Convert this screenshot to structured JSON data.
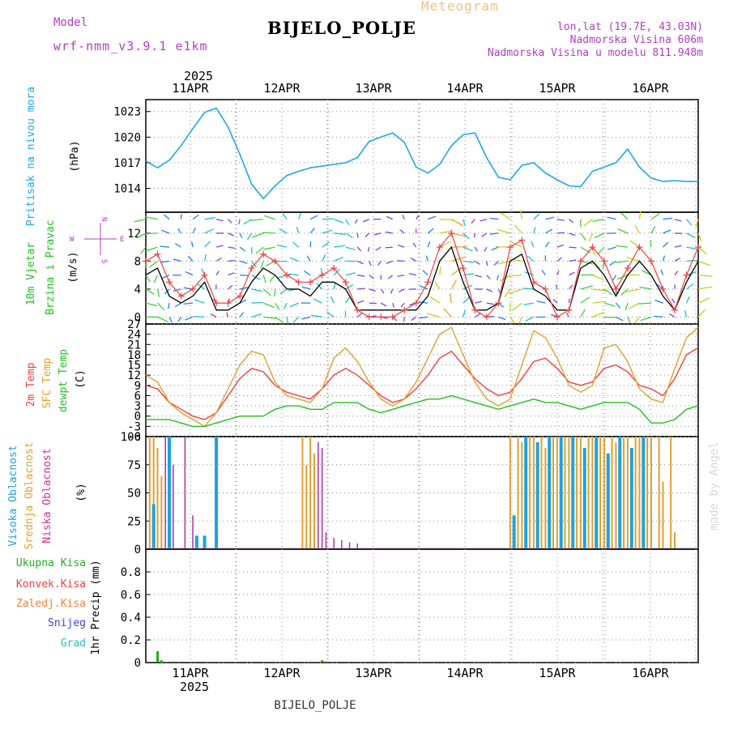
{
  "header": {
    "model_label": "Model",
    "model_value": "wrf-nmm_v3.9.1 e1km",
    "title": "BIJELO_POLJE",
    "meteogram_label": "Meteogram",
    "lonlat": "lon,lat (19.7E, 43.03N)",
    "elevation": "Nadmorska Visina 606m",
    "model_elevation": "Nadmorska Visina u modelu 811.948m"
  },
  "footer": {
    "station": "BIJELO_POLJE"
  },
  "watermark": "made by Angel",
  "colors": {
    "pressure": "#1ea7e8",
    "temp": "#f04040",
    "sfc": "#e0a030",
    "dew": "#20c020",
    "high_cloud": "#20a0e0",
    "mid_cloud": "#e0a030",
    "low_cloud": "#b030a0",
    "precip_total": "#20b020",
    "convective": "#f04040",
    "freezing": "#f08030",
    "snow": "#4040e0",
    "hail": "#20c0c0"
  },
  "chart_data": [
    {
      "type": "line",
      "name": "pressure",
      "ylabel_lines": [
        "Pritisak na nivou mora"
      ],
      "unit": "(hPa)",
      "top_year": "2025",
      "bottom_year": "2025",
      "xticks": [
        "11APR",
        "12APR",
        "13APR",
        "14APR",
        "15APR",
        "16APR"
      ],
      "xlim": [
        0,
        141
      ],
      "ylim": [
        1011.2,
        1024.4
      ],
      "yticks": [
        1014,
        1017,
        1020,
        1023
      ],
      "ytick_labels": [
        "1014",
        "1017",
        "1020",
        "1023"
      ],
      "x": [
        0,
        3,
        6,
        9,
        12,
        15,
        18,
        21,
        24,
        27,
        30,
        33,
        36,
        39,
        42,
        45,
        48,
        51,
        54,
        57,
        60,
        63,
        66,
        69,
        72,
        75,
        78,
        81,
        84,
        87,
        90,
        93,
        96,
        99,
        102,
        105,
        108,
        111,
        114,
        117,
        120,
        123,
        126,
        129,
        132,
        135,
        138,
        141
      ],
      "values": [
        1017.2,
        1016.4,
        1017.3,
        1019.0,
        1021.0,
        1022.9,
        1023.4,
        1021.2,
        1018.0,
        1014.5,
        1012.8,
        1014.3,
        1015.5,
        1016.0,
        1016.4,
        1016.6,
        1016.8,
        1017.0,
        1017.6,
        1019.5,
        1020.0,
        1020.5,
        1019.4,
        1016.5,
        1015.8,
        1016.8,
        1019.0,
        1020.3,
        1020.5,
        1017.6,
        1015.3,
        1015.0,
        1016.7,
        1017.0,
        1015.8,
        1015.0,
        1014.3,
        1014.2,
        1016.0,
        1016.5,
        1017.0,
        1018.6,
        1016.5,
        1015.2,
        1014.8,
        1014.9,
        1014.8,
        1014.8
      ]
    },
    {
      "type": "line",
      "name": "wind",
      "ylabel_lines": [
        "10m Vjetar",
        "Brzina i Pravac"
      ],
      "unit": "(m/s)",
      "compass": {
        "n": "N",
        "s": "S",
        "e": "E",
        "w": "W"
      },
      "ylim": [
        -1,
        15
      ],
      "yticks": [
        0,
        4,
        8,
        12
      ],
      "ytick_labels": [
        "0",
        "4",
        "8",
        "12"
      ],
      "x": [
        0,
        3,
        6,
        9,
        12,
        15,
        18,
        21,
        24,
        27,
        30,
        33,
        36,
        39,
        42,
        45,
        48,
        51,
        54,
        57,
        60,
        63,
        66,
        69,
        72,
        75,
        78,
        81,
        84,
        87,
        90,
        93,
        96,
        99,
        102,
        105,
        108,
        111,
        114,
        117,
        120,
        123,
        126,
        129,
        132,
        135,
        138,
        141
      ],
      "series": [
        {
          "name": "speed",
          "values": [
            6,
            7,
            3,
            2,
            3,
            5,
            1,
            1,
            2,
            5,
            7,
            6,
            4,
            4,
            3,
            5,
            5,
            4,
            1,
            1,
            1,
            1,
            1,
            1,
            3,
            8,
            10,
            5,
            1,
            1,
            2,
            8,
            9,
            4,
            3,
            1,
            1,
            7,
            8,
            6,
            3,
            6,
            8,
            6,
            3,
            1,
            5,
            8
          ]
        },
        {
          "name": "gust",
          "values": [
            8,
            9,
            5,
            3,
            4,
            6,
            2,
            2,
            3,
            7,
            9,
            8,
            6,
            5,
            5,
            6,
            7,
            5,
            1,
            0,
            0,
            0,
            1,
            2,
            5,
            10,
            12,
            7,
            1,
            0,
            2,
            10,
            11,
            5,
            4,
            0,
            1,
            8,
            10,
            8,
            4,
            7,
            10,
            8,
            4,
            1,
            6,
            10
          ]
        }
      ]
    },
    {
      "type": "line",
      "name": "temperature",
      "ylabel_lines": [
        "2m Temp",
        "SFC Temp",
        "dewpt Temp"
      ],
      "unit": "(C)",
      "ylim": [
        -6,
        27
      ],
      "yticks": [
        -6,
        -3,
        0,
        3,
        6,
        9,
        12,
        15,
        18,
        21,
        24,
        27
      ],
      "ytick_labels": [
        "-6",
        "-3",
        "0",
        "3",
        "6",
        "9",
        "12",
        "15",
        "18",
        "21",
        "24",
        "27"
      ],
      "x": [
        0,
        3,
        6,
        9,
        12,
        15,
        18,
        21,
        24,
        27,
        30,
        33,
        36,
        39,
        42,
        45,
        48,
        51,
        54,
        57,
        60,
        63,
        66,
        69,
        72,
        75,
        78,
        81,
        84,
        87,
        90,
        93,
        96,
        99,
        102,
        105,
        108,
        111,
        114,
        117,
        120,
        123,
        126,
        129,
        132,
        135,
        138,
        141
      ],
      "series": [
        {
          "name": "2m Temp",
          "values": [
            9,
            8,
            4,
            2,
            0,
            -1,
            1,
            6,
            11,
            14,
            13,
            9,
            7,
            6,
            5,
            8,
            12,
            14,
            12,
            9,
            6,
            4,
            5,
            8,
            12,
            17,
            19,
            15,
            11,
            8,
            6,
            7,
            11,
            16,
            17,
            14,
            10,
            9,
            10,
            14,
            15,
            13,
            9,
            8,
            6,
            11,
            18,
            20
          ]
        },
        {
          "name": "SFC Temp",
          "values": [
            12,
            10,
            4,
            1,
            -1,
            -3,
            1,
            8,
            15,
            19,
            18,
            10,
            6,
            5,
            4,
            8,
            17,
            20,
            16,
            10,
            5,
            3,
            5,
            10,
            17,
            24,
            26,
            18,
            10,
            5,
            3,
            5,
            15,
            25,
            23,
            17,
            9,
            7,
            9,
            20,
            21,
            16,
            8,
            5,
            4,
            14,
            23,
            26
          ]
        },
        {
          "name": "dewpt Temp",
          "values": [
            -1,
            -1,
            -1,
            -2,
            -3,
            -3,
            -2,
            -1,
            0,
            0,
            0,
            2,
            3,
            3,
            2,
            2,
            4,
            4,
            4,
            2,
            1,
            2,
            3,
            4,
            5,
            5,
            6,
            5,
            4,
            3,
            2,
            3,
            4,
            5,
            4,
            4,
            3,
            2,
            3,
            4,
            4,
            4,
            2,
            -2,
            -2,
            -1,
            2,
            3
          ]
        }
      ]
    },
    {
      "type": "bar",
      "name": "clouds",
      "ylabel_lines": [
        "Visoka Oblacnost",
        "Srednja Oblacnost",
        "Niska Oblacnost"
      ],
      "unit": "(%)",
      "ylim": [
        0,
        100
      ],
      "yticks": [
        0,
        25,
        50,
        75,
        100
      ],
      "ytick_labels": [
        "0",
        "25",
        "50",
        "75",
        "100"
      ],
      "high": {
        "x": [
          2,
          6,
          13,
          15,
          18,
          94,
          97,
          100,
          103,
          106,
          109,
          112,
          115,
          118,
          121,
          124,
          127
        ],
        "values": [
          40,
          100,
          12,
          12,
          100,
          30,
          100,
          95,
          100,
          100,
          100,
          90,
          100,
          85,
          100,
          90,
          100
        ]
      },
      "mid": {
        "x": [
          1,
          2,
          3,
          4,
          40,
          41,
          42,
          43,
          93,
          95,
          96,
          98,
          99,
          101,
          102,
          104,
          105,
          107,
          108,
          110,
          111,
          113,
          114,
          116,
          117,
          119,
          120,
          122,
          123,
          125,
          126,
          128,
          129,
          131,
          132,
          134,
          135
        ],
        "values": [
          100,
          100,
          90,
          65,
          100,
          75,
          100,
          85,
          100,
          100,
          95,
          100,
          100,
          100,
          90,
          100,
          100,
          100,
          100,
          100,
          100,
          100,
          100,
          100,
          100,
          100,
          95,
          100,
          100,
          100,
          100,
          100,
          100,
          100,
          60,
          100,
          15
        ]
      },
      "low": {
        "x": [
          5,
          7,
          10,
          12,
          44,
          45,
          46,
          48,
          50,
          52,
          54
        ],
        "values": [
          100,
          75,
          100,
          30,
          95,
          90,
          15,
          10,
          8,
          6,
          5
        ]
      }
    },
    {
      "type": "bar",
      "name": "precip",
      "ylabel_lines": [
        "1hr Precip (mm)"
      ],
      "legend": [
        "Ukupna Kisa",
        "Konvek.Kisa",
        "Zaledj.Kisa",
        "Snijeg",
        "Grad"
      ],
      "ylim": [
        0,
        1.0
      ],
      "yticks": [
        0,
        0.2,
        0.4,
        0.6,
        0.8
      ],
      "ytick_labels": [
        "0",
        "0.2",
        "0.4",
        "0.6",
        "0.8"
      ],
      "x": [
        3,
        4,
        7,
        45,
        46
      ],
      "values": [
        0.1,
        0.02,
        0.01,
        0.02,
        0.01
      ]
    }
  ]
}
